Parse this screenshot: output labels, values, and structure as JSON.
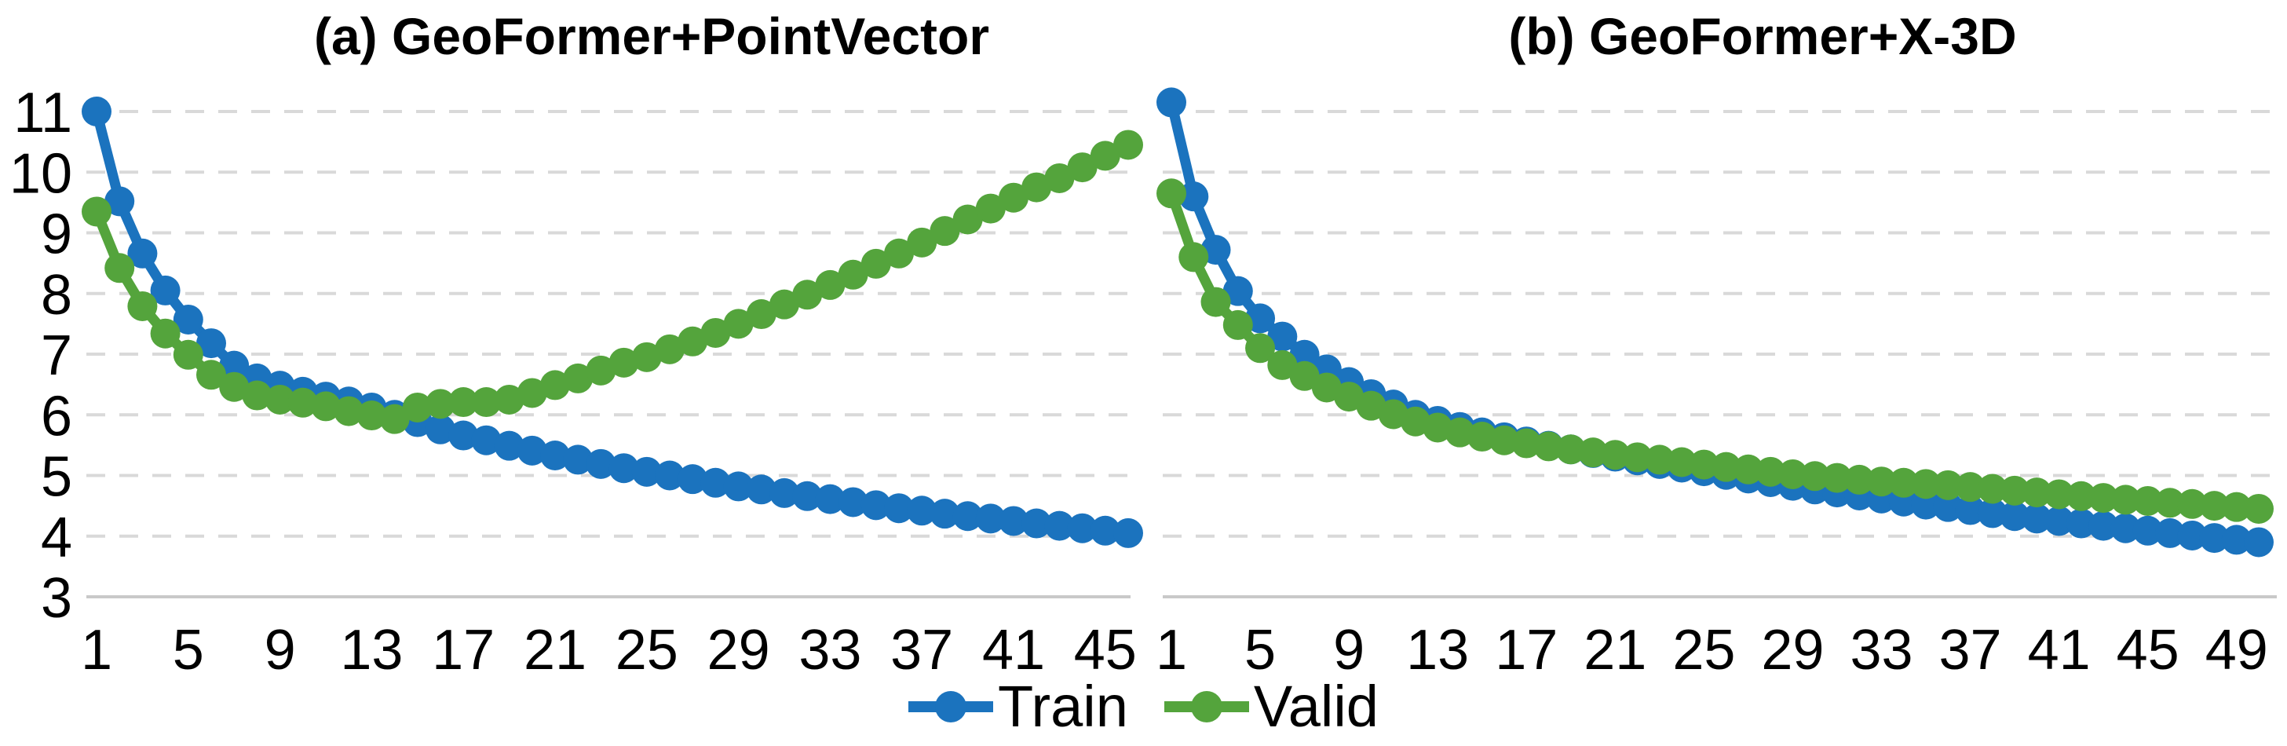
{
  "colors": {
    "train": "#1b73be",
    "valid": "#54a43c",
    "gridline": "#d9d9d9",
    "axis_line": "#c9c9c9",
    "text": "#000000",
    "background": "#ffffff"
  },
  "legend": {
    "position": "bottom-center",
    "items": [
      {
        "label": "Train",
        "color": "#1b73be"
      },
      {
        "label": "Valid",
        "color": "#54a43c"
      }
    ]
  },
  "chart_data": [
    {
      "type": "line",
      "id": "chart-a",
      "title": "(a) GeoFormer+PointVector",
      "xlabel": "",
      "ylabel": "",
      "ylim": [
        3,
        11
      ],
      "y_ticks": [
        3,
        4,
        5,
        6,
        7,
        8,
        9,
        10,
        11
      ],
      "y_labels_visible": true,
      "x_ticks": [
        1,
        5,
        9,
        13,
        17,
        21,
        25,
        29,
        33,
        37,
        41,
        45
      ],
      "n_points": 46,
      "grid": "horizontal-dashed",
      "marker": "circle",
      "series": [
        {
          "name": "Train",
          "color": "#1b73be",
          "values": [
            11.0,
            9.52,
            8.66,
            8.05,
            7.57,
            7.18,
            6.81,
            6.6,
            6.48,
            6.38,
            6.3,
            6.22,
            6.12,
            6.0,
            5.88,
            5.76,
            5.66,
            5.58,
            5.49,
            5.41,
            5.33,
            5.26,
            5.19,
            5.12,
            5.06,
            5.0,
            4.94,
            4.88,
            4.82,
            4.77,
            4.71,
            4.66,
            4.61,
            4.56,
            4.51,
            4.46,
            4.42,
            4.37,
            4.33,
            4.29,
            4.25,
            4.21,
            4.17,
            4.13,
            4.09,
            4.05
          ]
        },
        {
          "name": "Valid",
          "color": "#54a43c",
          "values": [
            9.35,
            8.42,
            7.79,
            7.34,
            6.99,
            6.66,
            6.46,
            6.32,
            6.25,
            6.2,
            6.14,
            6.06,
            5.99,
            5.93,
            6.12,
            6.18,
            6.21,
            6.21,
            6.25,
            6.36,
            6.49,
            6.6,
            6.73,
            6.86,
            6.95,
            7.08,
            7.21,
            7.35,
            7.5,
            7.66,
            7.82,
            7.98,
            8.14,
            8.31,
            8.49,
            8.66,
            8.84,
            9.03,
            9.22,
            9.4,
            9.58,
            9.75,
            9.9,
            10.08,
            10.27,
            10.45
          ]
        }
      ]
    },
    {
      "type": "line",
      "id": "chart-b",
      "title": "(b) GeoFormer+X-3D",
      "xlabel": "",
      "ylabel": "",
      "ylim": [
        3,
        11
      ],
      "y_ticks": [
        3,
        4,
        5,
        6,
        7,
        8,
        9,
        10,
        11
      ],
      "y_labels_visible": false,
      "x_ticks": [
        1,
        5,
        9,
        13,
        17,
        21,
        25,
        29,
        33,
        37,
        41,
        45,
        49
      ],
      "n_points": 50,
      "grid": "horizontal-dashed",
      "marker": "circle",
      "series": [
        {
          "name": "Train",
          "color": "#1b73be",
          "values": [
            11.15,
            9.6,
            8.72,
            8.04,
            7.59,
            7.29,
            6.99,
            6.75,
            6.54,
            6.34,
            6.17,
            6.0,
            5.9,
            5.8,
            5.71,
            5.63,
            5.56,
            5.49,
            5.43,
            5.37,
            5.31,
            5.25,
            5.19,
            5.13,
            5.07,
            5.01,
            4.95,
            4.89,
            4.83,
            4.77,
            4.72,
            4.67,
            4.62,
            4.57,
            4.52,
            4.48,
            4.43,
            4.38,
            4.33,
            4.29,
            4.25,
            4.21,
            4.17,
            4.13,
            4.09,
            4.05,
            4.01,
            3.97,
            3.94,
            3.9
          ]
        },
        {
          "name": "Valid",
          "color": "#54a43c",
          "values": [
            9.65,
            8.6,
            7.86,
            7.48,
            7.1,
            6.82,
            6.64,
            6.45,
            6.3,
            6.15,
            6.01,
            5.89,
            5.79,
            5.71,
            5.64,
            5.58,
            5.53,
            5.48,
            5.43,
            5.38,
            5.34,
            5.3,
            5.26,
            5.22,
            5.18,
            5.14,
            5.1,
            5.06,
            5.02,
            4.99,
            4.96,
            4.93,
            4.9,
            4.88,
            4.86,
            4.84,
            4.81,
            4.78,
            4.75,
            4.72,
            4.69,
            4.66,
            4.63,
            4.6,
            4.58,
            4.55,
            4.53,
            4.5,
            4.48,
            4.45
          ]
        }
      ]
    }
  ]
}
